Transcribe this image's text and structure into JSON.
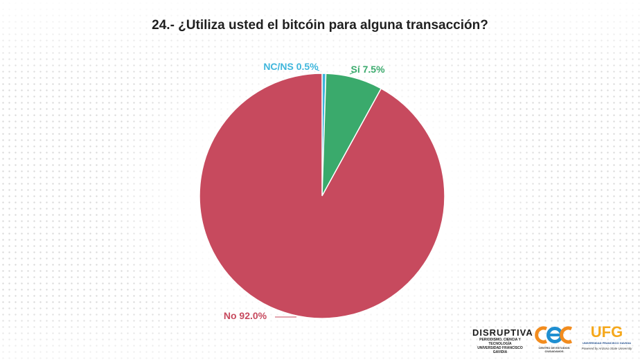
{
  "title": "24.- ¿Utiliza usted el bitcóin para alguna transacción?",
  "chart_data": {
    "type": "pie",
    "title": "24.- ¿Utiliza usted el bitcóin para alguna transacción?",
    "slices": [
      {
        "label": "NC/NS",
        "value": 0.5,
        "display": "NC/NS 0.5%",
        "color": "#3fb6dc"
      },
      {
        "label": "Sí",
        "value": 7.5,
        "display": "Sí 7.5%",
        "color": "#3aaa6c"
      },
      {
        "label": "No",
        "value": 92.0,
        "display": "No 92.0%",
        "color": "#c74a5e"
      }
    ],
    "start_angle_deg": 0,
    "direction": "clockwise"
  },
  "logos": {
    "disruptiva": {
      "name": "DISRUPTIVA",
      "sub1": "PERIODISMO, CIENCIA Y TECNOLOGÍA",
      "sub2": "UNIVERSIDAD FRANCISCO GAVIDIA"
    },
    "cec": {
      "caption": "CENTRO DE ESTUDIOS CIUDADANOS"
    },
    "ufg": {
      "name": "UFG",
      "sub1": "UNIVERSIDAD FRANCISCO GAVIDIA",
      "sub2": "Powered by Arizona State University"
    }
  }
}
